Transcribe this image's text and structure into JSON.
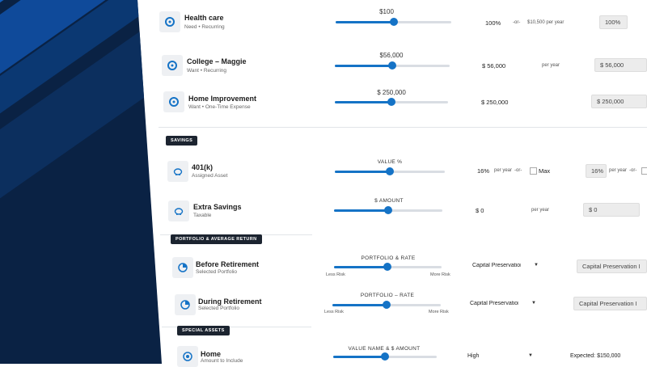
{
  "rows": {
    "health": {
      "name": "Health care",
      "sub": "Need • Recurring",
      "slider_label": "$100",
      "percent": "100%",
      "or": "-or-",
      "per_year": "$10,500 per year",
      "input": "100%",
      "slider_pos": 0.52
    },
    "college": {
      "name": "College – Maggie",
      "sub": "Want • Recurring",
      "slider_label": "$56,000",
      "amount": "$  56,000",
      "per_year": "per year",
      "input": "$  56,000",
      "slider_pos": 0.5
    },
    "home_improvement": {
      "name": "Home Improvement",
      "sub": "Want • One-Time Expense",
      "slider_label": "$ 250,000",
      "amount": "$  250,000",
      "input": "$  250,000",
      "slider_pos": 0.5
    }
  },
  "savings": {
    "tag": "SAVINGS",
    "k401": {
      "name": "401(k)",
      "sub": "Assigned Asset",
      "slider_label": "VALUE %",
      "percent": "16%",
      "per_year": "per year",
      "or": "-or-",
      "max": "Max",
      "input": "16%",
      "per_year2": "per year",
      "or2": "-or-",
      "slider_pos": 0.5
    },
    "extra": {
      "name": "Extra Savings",
      "sub": "Taxable",
      "slider_label": "$ AMOUNT",
      "amount": "$  0",
      "per_year": "per year",
      "input": "$  0",
      "slider_pos": 0.5
    }
  },
  "portfolio": {
    "tag": "PORTFOLIO & AVERAGE RETURN",
    "before": {
      "name": "Before Retirement",
      "sub": "Selected Portfolio",
      "slider_label": "PORTFOLIO & RATE",
      "less": "Less Risk",
      "more": "More Risk",
      "select": "Capital Preservation I",
      "input": "Capital Preservation I",
      "slider_pos": 0.5
    },
    "during": {
      "name": "During Retirement",
      "sub": "Selected Portfolio",
      "slider_label": "PORTFOLIO – RATE",
      "less": "Less Risk",
      "more": "More Risk",
      "select": "Capital Preservation I",
      "input": "Capital Preservation I",
      "slider_pos": 0.5
    }
  },
  "special": {
    "tag": "SPECIAL ASSETS",
    "home": {
      "name": "Home",
      "sub": "Amount to Include",
      "slider_label": "VALUE NAME & $ AMOUNT",
      "select": "High",
      "expected": "Expected: $150,000",
      "slider_pos": 0.5
    }
  },
  "colors": {
    "accent": "#1573c6",
    "panel": "#0a2244"
  }
}
